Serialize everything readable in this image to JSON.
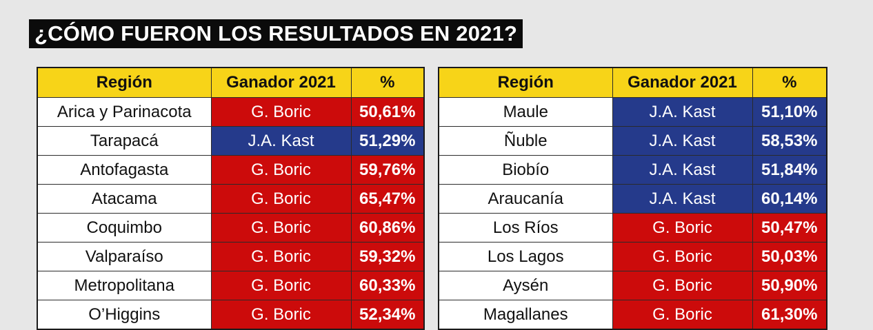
{
  "title": "¿CÓMO FUERON LOS RESULTADOS EN 2021?",
  "colors": {
    "header_bg": "#f7d418",
    "boric": "#cc0b0b",
    "kast": "#253a8b"
  },
  "headers": {
    "region": "Región",
    "winner": "Ganador 2021",
    "pct": "%"
  },
  "left_rows": [
    {
      "region": "Arica y Parinacota",
      "winner": "G. Boric",
      "pct": "50,61%"
    },
    {
      "region": "Tarapacá",
      "winner": "J.A. Kast",
      "pct": "51,29%"
    },
    {
      "region": "Antofagasta",
      "winner": "G. Boric",
      "pct": "59,76%"
    },
    {
      "region": "Atacama",
      "winner": "G. Boric",
      "pct": "65,47%"
    },
    {
      "region": "Coquimbo",
      "winner": "G. Boric",
      "pct": "60,86%"
    },
    {
      "region": "Valparaíso",
      "winner": "G. Boric",
      "pct": "59,32%"
    },
    {
      "region": "Metropolitana",
      "winner": "G. Boric",
      "pct": "60,33%"
    },
    {
      "region": "O’Higgins",
      "winner": "G. Boric",
      "pct": "52,34%"
    }
  ],
  "right_rows": [
    {
      "region": "Maule",
      "winner": "J.A. Kast",
      "pct": "51,10%"
    },
    {
      "region": "Ñuble",
      "winner": "J.A. Kast",
      "pct": "58,53%"
    },
    {
      "region": "Biobío",
      "winner": "J.A. Kast",
      "pct": "51,84%"
    },
    {
      "region": "Araucanía",
      "winner": "J.A. Kast",
      "pct": "60,14%"
    },
    {
      "region": "Los Ríos",
      "winner": "G. Boric",
      "pct": "50,47%"
    },
    {
      "region": "Los Lagos",
      "winner": "G. Boric",
      "pct": "50,03%"
    },
    {
      "region": "Aysén",
      "winner": "G. Boric",
      "pct": "50,90%"
    },
    {
      "region": "Magallanes",
      "winner": "G. Boric",
      "pct": "61,30%"
    }
  ]
}
